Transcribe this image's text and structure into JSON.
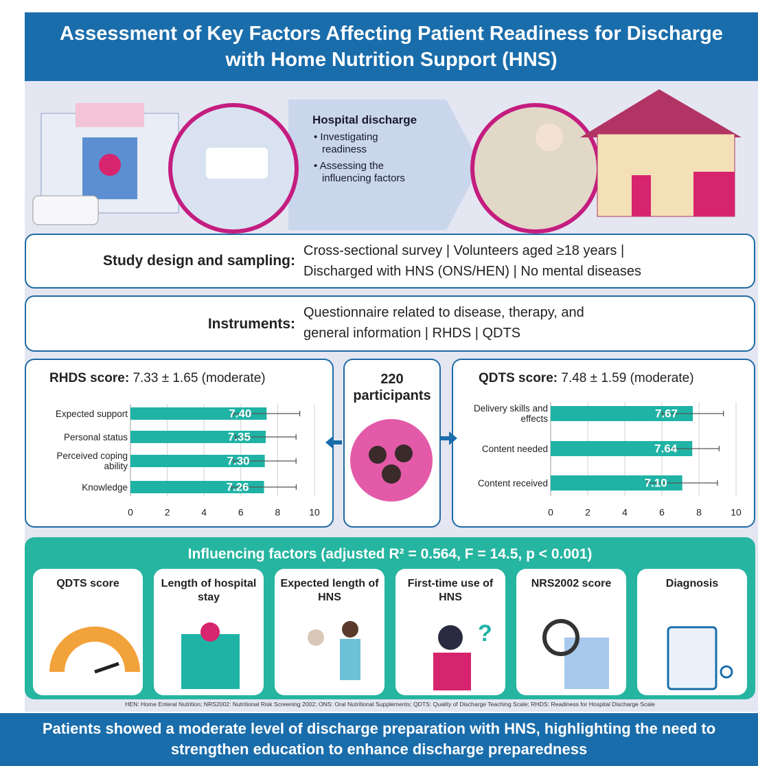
{
  "header": {
    "title": "Assessment of Key Factors Affecting Patient Readiness for Discharge with Home Nutrition Support (HNS)"
  },
  "hero": {
    "heading": "Hospital discharge",
    "items": [
      "Investigating readiness",
      "Assessing the influencing factors"
    ]
  },
  "study": {
    "label": "Study design and sampling:",
    "lines": [
      "Cross-sectional survey | Volunteers aged ≥18 years |",
      "Discharged with HNS (ONS/HEN) | No mental diseases"
    ]
  },
  "instruments": {
    "label": "Instruments:",
    "lines": [
      "Questionnaire related to disease, therapy, and",
      "general information | RHDS | QDTS"
    ]
  },
  "chart_data": [
    {
      "type": "bar",
      "title": "RHDS score:",
      "subtitle": "7.33 ± 1.65 (moderate)",
      "categories": [
        "Expected support",
        "Personal status",
        "Perceived coping ability",
        "Knowledge"
      ],
      "values": [
        7.4,
        7.35,
        7.3,
        7.26
      ],
      "value_labels": [
        "7.40",
        "7.35",
        "7.30",
        "7.26"
      ],
      "errors": [
        1.8,
        1.65,
        1.7,
        1.75
      ],
      "color": "#1fb3a5",
      "xlim": [
        0,
        10
      ],
      "xticks": [
        0,
        2,
        4,
        6,
        8,
        10
      ],
      "grid": true
    },
    {
      "type": "bar",
      "title": "QDTS score:",
      "subtitle": "7.48 ± 1.59 (moderate)",
      "categories": [
        "Delivery skills and effects",
        "Content needed",
        "Content received"
      ],
      "values": [
        7.67,
        7.64,
        7.1
      ],
      "value_labels": [
        "7.67",
        "7.64",
        "7.10"
      ],
      "errors": [
        1.65,
        1.45,
        1.9
      ],
      "color": "#1fb3a5",
      "xlim": [
        0,
        10
      ],
      "xticks": [
        0,
        2,
        4,
        6,
        8,
        10
      ],
      "grid": true
    }
  ],
  "participants": {
    "text": "220 participants"
  },
  "factors": {
    "title": "Influencing factors (adjusted R² = 0.564, F = 14.5, p < 0.001)",
    "cards": [
      "QDTS score",
      "Length of hospital stay",
      "Expected length of HNS",
      "First-time use of HNS",
      "NRS2002 score",
      "Diagnosis"
    ]
  },
  "footnote": "HEN: Home Enteral Nutrition; NRS2002: Nutritional Risk Screening 2002; ONS: Oral Nutritional Supplements; QDTS: Quality of Discharge Teaching Scale; RHDS: Readiness for Hospital Discharge Scale",
  "conclusion": "Patients showed a moderate level of discharge preparation with HNS, highlighting the need to strengthen education to enhance discharge preparedness"
}
